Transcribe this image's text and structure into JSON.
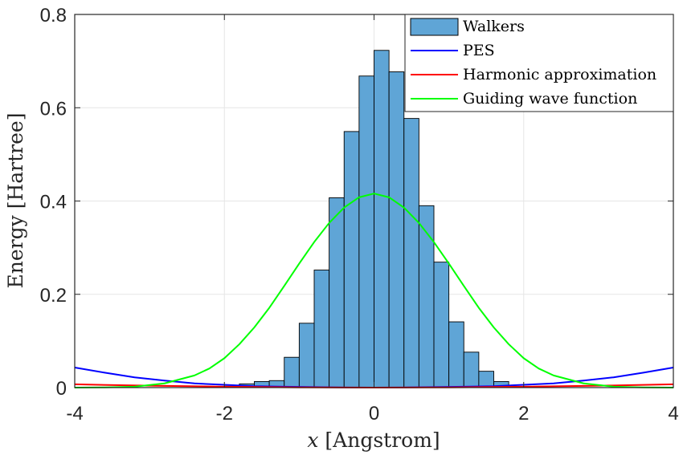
{
  "chart_data": {
    "type": "bar",
    "title": "",
    "xlabel_var": "x",
    "xlabel_unit": "[Angstrom]",
    "ylabel": "Energy [Hartree]",
    "xlim": [
      -4,
      4
    ],
    "ylim": [
      0,
      0.8
    ],
    "xticks": [
      -4,
      -2,
      0,
      2,
      4
    ],
    "xtick_labels": [
      "-4",
      "-2",
      "0",
      "2",
      "4"
    ],
    "yticks": [
      0,
      0.2,
      0.4,
      0.6,
      0.8
    ],
    "ytick_labels": [
      "0",
      "0.2",
      "0.4",
      "0.6",
      "0.8"
    ],
    "grid": true,
    "legend_position": "top-right",
    "histogram": {
      "name": "Walkers",
      "color": "#5fa5d6",
      "bin_width": 0.2,
      "bins": [
        {
          "x0": -2.0,
          "x1": -1.8,
          "value": 0.003
        },
        {
          "x0": -1.8,
          "x1": -1.6,
          "value": 0.008
        },
        {
          "x0": -1.6,
          "x1": -1.4,
          "value": 0.013
        },
        {
          "x0": -1.4,
          "x1": -1.2,
          "value": 0.015
        },
        {
          "x0": -1.2,
          "x1": -1.0,
          "value": 0.065
        },
        {
          "x0": -1.0,
          "x1": -0.8,
          "value": 0.138
        },
        {
          "x0": -0.8,
          "x1": -0.6,
          "value": 0.252
        },
        {
          "x0": -0.6,
          "x1": -0.4,
          "value": 0.407
        },
        {
          "x0": -0.4,
          "x1": -0.2,
          "value": 0.549
        },
        {
          "x0": -0.2,
          "x1": 0.0,
          "value": 0.668
        },
        {
          "x0": 0.0,
          "x1": 0.2,
          "value": 0.723
        },
        {
          "x0": 0.2,
          "x1": 0.4,
          "value": 0.677
        },
        {
          "x0": 0.4,
          "x1": 0.6,
          "value": 0.577
        },
        {
          "x0": 0.6,
          "x1": 0.8,
          "value": 0.39
        },
        {
          "x0": 0.8,
          "x1": 1.0,
          "value": 0.269
        },
        {
          "x0": 1.0,
          "x1": 1.2,
          "value": 0.141
        },
        {
          "x0": 1.2,
          "x1": 1.4,
          "value": 0.076
        },
        {
          "x0": 1.4,
          "x1": 1.6,
          "value": 0.035
        },
        {
          "x0": 1.6,
          "x1": 1.8,
          "value": 0.013
        }
      ]
    },
    "series": [
      {
        "name": "PES",
        "color": "#0000ff",
        "x": [
          -4.0,
          -3.6,
          -3.2,
          -2.8,
          -2.4,
          -2.0,
          -1.6,
          -1.2,
          -0.8,
          -0.4,
          0.0,
          0.4,
          0.8,
          1.2,
          1.6,
          2.0,
          2.4,
          2.8,
          3.2,
          3.6,
          4.0
        ],
        "y": [
          0.043,
          0.032,
          0.022,
          0.015,
          0.009,
          0.006,
          0.003,
          0.002,
          0.001,
          0.0003,
          0.0,
          0.0003,
          0.001,
          0.002,
          0.003,
          0.006,
          0.009,
          0.015,
          0.022,
          0.032,
          0.043
        ]
      },
      {
        "name": "Harmonic approximation",
        "color": "#ff0000",
        "x": [
          -4.0,
          -3.0,
          -2.0,
          -1.0,
          0.0,
          1.0,
          2.0,
          3.0,
          4.0
        ],
        "y": [
          0.007,
          0.004,
          0.002,
          0.0005,
          0.0,
          0.0005,
          0.002,
          0.004,
          0.007
        ]
      },
      {
        "name": "Guiding wave function",
        "color": "#00ff00",
        "x": [
          -4.0,
          -3.6,
          -3.2,
          -2.8,
          -2.4,
          -2.2,
          -2.0,
          -1.8,
          -1.6,
          -1.4,
          -1.2,
          -1.0,
          -0.8,
          -0.6,
          -0.4,
          -0.2,
          0.0,
          0.2,
          0.4,
          0.6,
          0.8,
          1.0,
          1.2,
          1.4,
          1.6,
          1.8,
          2.0,
          2.2,
          2.4,
          2.8,
          3.2,
          3.6,
          4.0
        ],
        "y": [
          0.0,
          0.0004,
          0.002,
          0.009,
          0.026,
          0.041,
          0.063,
          0.093,
          0.129,
          0.171,
          0.218,
          0.266,
          0.312,
          0.353,
          0.386,
          0.408,
          0.416,
          0.408,
          0.386,
          0.353,
          0.312,
          0.266,
          0.218,
          0.171,
          0.129,
          0.093,
          0.063,
          0.041,
          0.026,
          0.009,
          0.002,
          0.0004,
          0.0
        ]
      }
    ]
  }
}
